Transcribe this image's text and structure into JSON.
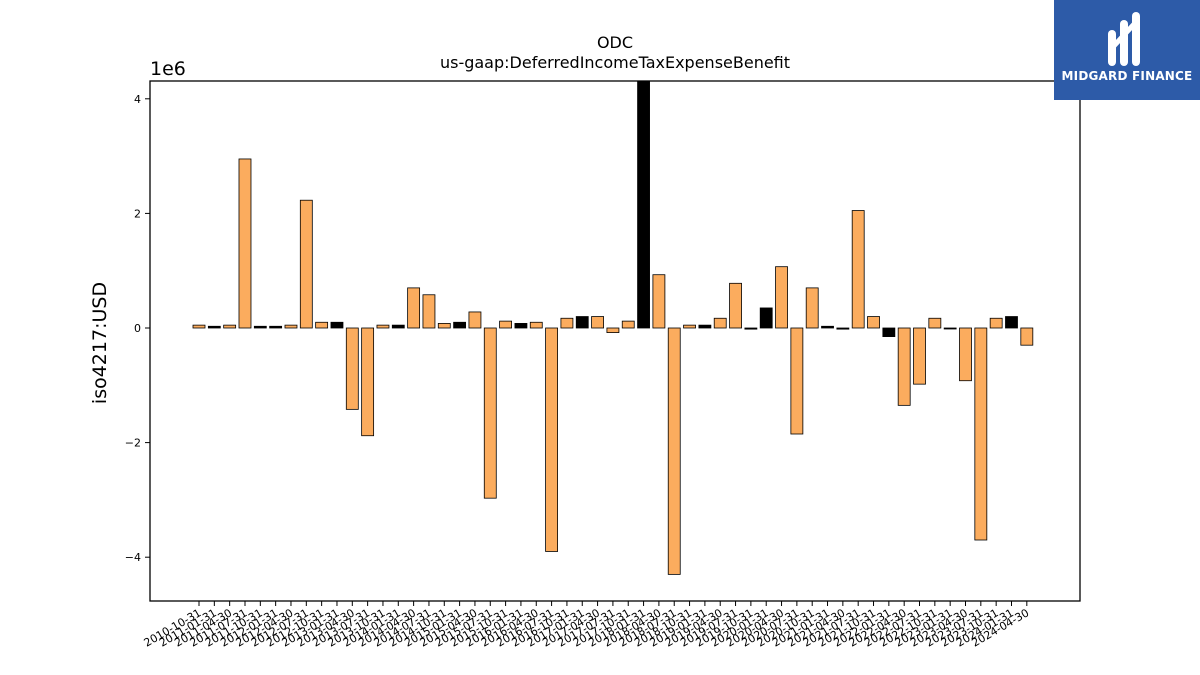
{
  "chart_data": {
    "type": "bar",
    "title": "ODC",
    "subtitle": "us-gaap:DeferredIncomeTaxExpenseBenefit",
    "ylabel": "iso4217:USD",
    "xlabel": "",
    "offset_label": "1e6",
    "ylim": [
      -4.5,
      4.3
    ],
    "yticks": [
      -4,
      -2,
      0,
      2,
      4
    ],
    "ytick_labels": [
      "−4",
      "−2",
      "0",
      "2",
      "4"
    ],
    "colors": {
      "orange": "#fbac5e",
      "black": "#000000"
    },
    "categories": [
      "2010-10-31",
      "2011-01-31",
      "2011-04-30",
      "2011-07-31",
      "2011-10-31",
      "2012-01-31",
      "2012-04-30",
      "2012-07-31",
      "2012-10-31",
      "2013-01-31",
      "2013-04-30",
      "2013-07-31",
      "2013-10-31",
      "2014-01-31",
      "2014-04-30",
      "2014-07-31",
      "2014-10-31",
      "2015-01-31",
      "2015-04-30",
      "2015-07-31",
      "2015-10-31",
      "2016-01-31",
      "2016-04-30",
      "2016-07-31",
      "2016-10-31",
      "2017-01-31",
      "2017-04-30",
      "2017-07-31",
      "2017-10-31",
      "2018-01-31",
      "2018-04-30",
      "2018-07-31",
      "2018-10-31",
      "2019-01-31",
      "2019-04-30",
      "2019-07-31",
      "2019-10-31",
      "2020-01-31",
      "2020-04-30",
      "2020-07-31",
      "2020-10-31",
      "2021-01-31",
      "2021-04-30",
      "2021-07-31",
      "2021-10-31",
      "2022-01-31",
      "2022-04-30",
      "2022-07-31",
      "2022-10-31",
      "2023-01-31",
      "2023-04-30",
      "2023-07-31",
      "2023-10-31",
      "2024-01-31",
      "2024-04-30"
    ],
    "values": [
      0.05,
      0.03,
      0.05,
      2.95,
      0.03,
      0.03,
      0.05,
      2.23,
      0.1,
      0.1,
      -1.42,
      -1.88,
      0.05,
      0.05,
      0.7,
      0.58,
      0.08,
      0.1,
      0.28,
      -2.97,
      0.12,
      0.08,
      0.1,
      -3.9,
      0.17,
      0.2,
      0.2,
      -0.08,
      0.12,
      4.35,
      0.93,
      -4.3,
      0.05,
      0.05,
      0.17,
      0.78,
      -0.02,
      0.35,
      1.07,
      -1.85,
      0.7,
      0.03,
      -0.02,
      2.05,
      0.2,
      -0.15,
      -1.35,
      -0.98,
      0.17,
      -0.01,
      -0.92,
      -3.7,
      0.17,
      0.2,
      -0.3
    ],
    "bar_colors": [
      "orange",
      "black",
      "orange",
      "orange",
      "black",
      "black",
      "orange",
      "orange",
      "orange",
      "black",
      "orange",
      "orange",
      "orange",
      "black",
      "orange",
      "orange",
      "orange",
      "black",
      "orange",
      "orange",
      "orange",
      "black",
      "orange",
      "orange",
      "orange",
      "black",
      "orange",
      "orange",
      "orange",
      "black",
      "orange",
      "orange",
      "orange",
      "black",
      "orange",
      "orange",
      "black",
      "black",
      "orange",
      "orange",
      "orange",
      "black",
      "black",
      "orange",
      "orange",
      "black",
      "orange",
      "orange",
      "orange",
      "black",
      "orange",
      "orange",
      "orange",
      "black",
      "orange"
    ]
  },
  "logo": {
    "text": "MIDGARD FINANCE"
  }
}
